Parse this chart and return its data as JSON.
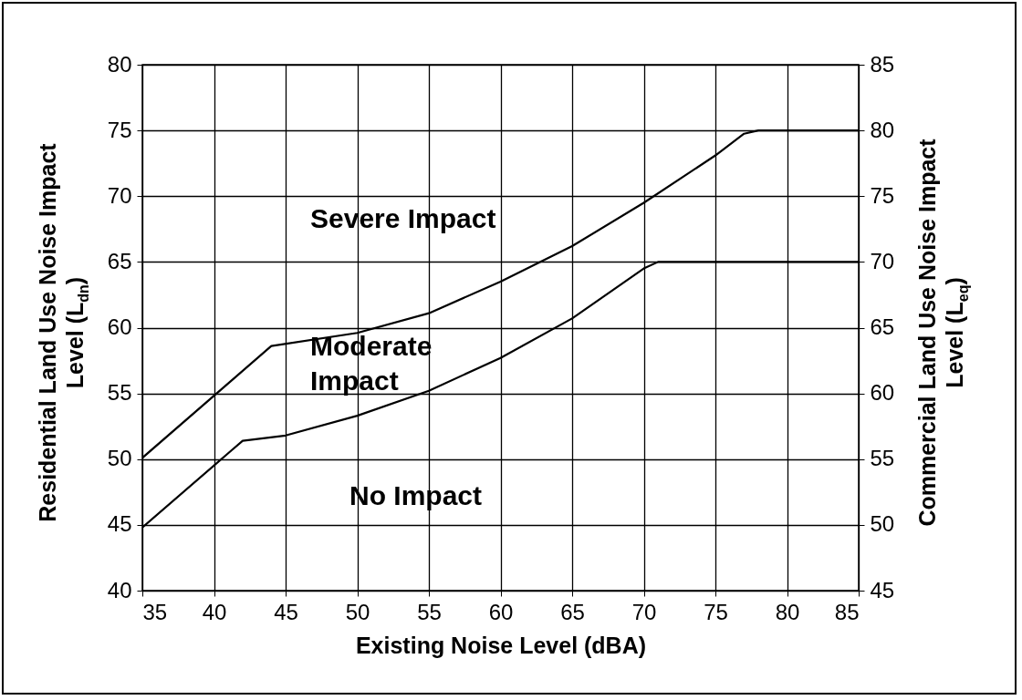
{
  "chart_data": {
    "type": "line",
    "xlabel": "Existing Noise Level (dBA)",
    "ylabel": "Residential Land Use Noise Impact Level (L$_{dn}$)",
    "y2label": "Commercial Land Use Noise Impact Level (L$_{eq}$)",
    "annotations": [
      "Severe Impact",
      "Moderate Impact",
      "No Impact"
    ],
    "series": [
      {
        "color": "#000000",
        "x": [
          35,
          44,
          50,
          55,
          60,
          65,
          70,
          75,
          77,
          78,
          85
        ],
        "values": [
          50.1,
          58.6,
          59.6,
          61.1,
          63.5,
          66.2,
          69.5,
          73.1,
          74.75,
          75,
          75
        ]
      },
      {
        "color": "#000000",
        "x": [
          35,
          42,
          45,
          50,
          55,
          60,
          65,
          70,
          71,
          85
        ],
        "values": [
          44.8,
          51.4,
          51.8,
          53.3,
          55.2,
          57.7,
          60.7,
          64.5,
          65,
          65
        ]
      }
    ],
    "xlim": [
      35,
      85
    ],
    "xticks": [
      35,
      40,
      45,
      50,
      55,
      60,
      65,
      70,
      75,
      80,
      85
    ],
    "ylim": [
      40,
      80
    ],
    "yticks": [
      40,
      45,
      50,
      55,
      60,
      65,
      70,
      75,
      80
    ],
    "y2lim": [
      45,
      85
    ],
    "y2ticks": [
      45,
      50,
      55,
      60,
      65,
      70,
      75,
      80,
      85
    ],
    "grid": true
  }
}
